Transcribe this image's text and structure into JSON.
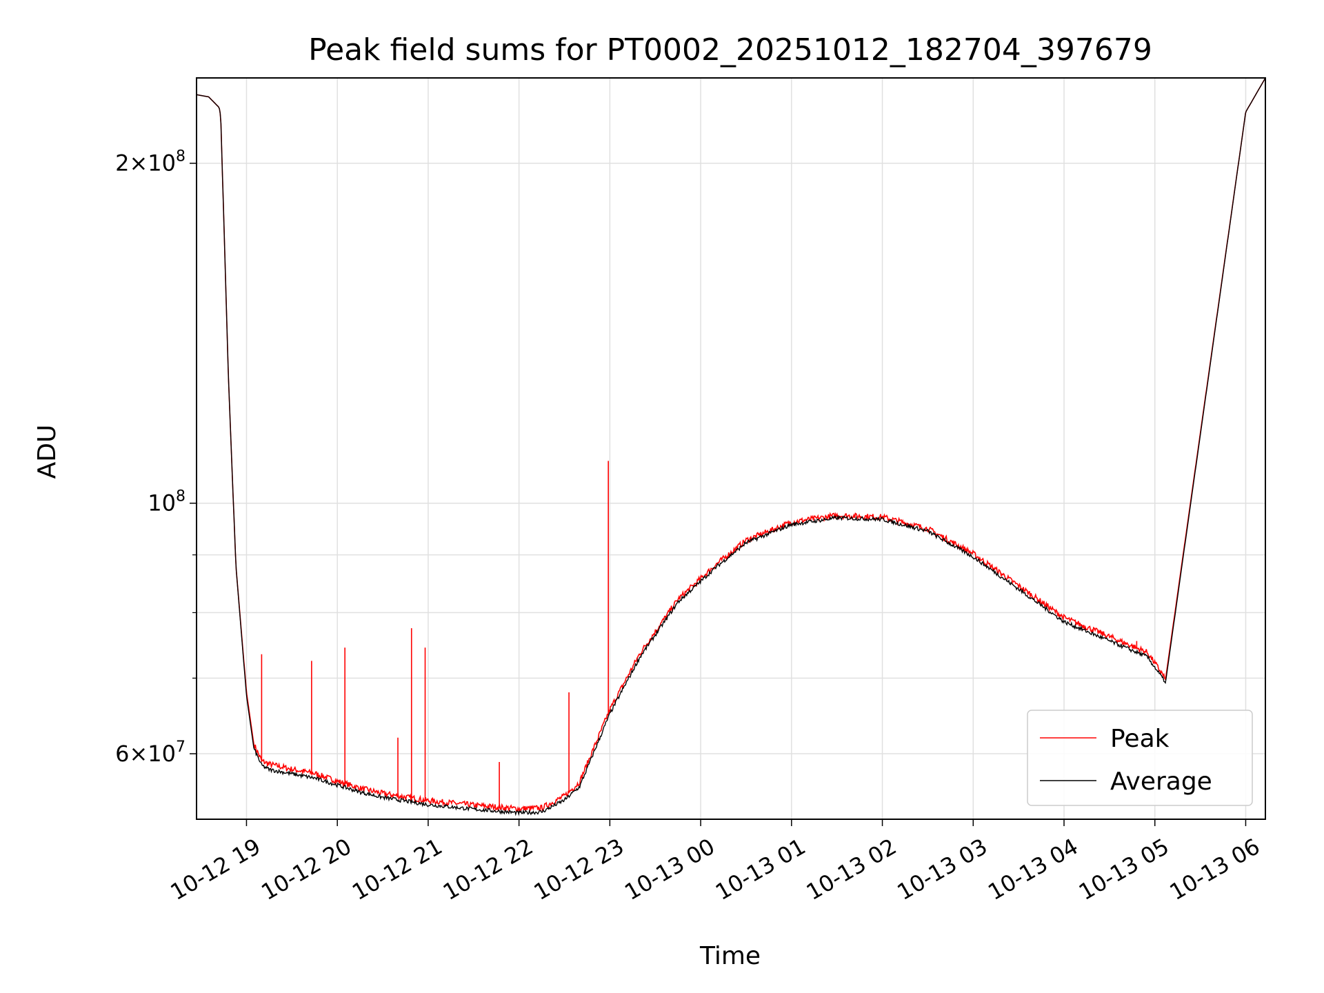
{
  "chart_data": {
    "type": "line",
    "title": "Peak field sums for PT0002_20251012_182704_397679",
    "xlabel": "Time",
    "ylabel": "ADU",
    "yscale": "log",
    "grid": true,
    "legend_placement": "lower-right",
    "xlim": [
      "2025-10-12 18:27",
      "2025-10-13 06:13"
    ],
    "ylim": [
      52500000,
      238000000
    ],
    "x_ticks": [
      "10-12 19",
      "10-12 20",
      "10-12 21",
      "10-12 22",
      "10-12 23",
      "10-13 00",
      "10-13 01",
      "10-13 02",
      "10-13 03",
      "10-13 04",
      "10-13 05",
      "10-13 06"
    ],
    "y_ticks_major": [
      {
        "value": 200000000,
        "mantissa": "2",
        "exponent": "8"
      },
      {
        "value": 100000000,
        "mantissa": "",
        "exponent": "8"
      },
      {
        "value": 60000000,
        "mantissa": "6",
        "exponent": "7"
      }
    ],
    "y_ticks_minor": [
      70000000,
      80000000,
      90000000
    ],
    "x": [
      "2025-10-12 18:27",
      "2025-10-12 18:35",
      "2025-10-12 18:42",
      "2025-10-12 18:43",
      "2025-10-12 18:48",
      "2025-10-12 18:53",
      "2025-10-12 19:00",
      "2025-10-12 19:05",
      "2025-10-12 19:10",
      "2025-10-12 19:15",
      "2025-10-12 19:30",
      "2025-10-12 19:45",
      "2025-10-12 20:00",
      "2025-10-12 20:15",
      "2025-10-12 20:30",
      "2025-10-12 21:00",
      "2025-10-12 21:30",
      "2025-10-12 22:00",
      "2025-10-12 22:15",
      "2025-10-12 22:30",
      "2025-10-12 22:40",
      "2025-10-12 23:00",
      "2025-10-12 23:20",
      "2025-10-12 23:45",
      "2025-10-13 00:10",
      "2025-10-13 00:30",
      "2025-10-13 01:00",
      "2025-10-13 01:30",
      "2025-10-13 02:00",
      "2025-10-13 02:30",
      "2025-10-13 03:00",
      "2025-10-13 03:30",
      "2025-10-13 04:00",
      "2025-10-13 04:30",
      "2025-10-13 04:55",
      "2025-10-13 05:07",
      "2025-10-13 06:00",
      "2025-10-13 06:13"
    ],
    "series": [
      {
        "name": "Peak",
        "color": "#ff0000",
        "values": [
          230000000,
          229000000,
          224000000,
          220000000,
          130000000,
          88000000,
          68000000,
          61000000,
          59000000,
          58600000,
          58000000,
          57500000,
          56600000,
          55800000,
          55200000,
          54400000,
          53900000,
          53500000,
          53600000,
          54900000,
          56500000,
          65500000,
          73500000,
          82000000,
          88000000,
          92500000,
          96000000,
          97300000,
          97000000,
          94700000,
          90000000,
          84300000,
          79000000,
          76000000,
          73600000,
          69800000,
          222000000,
          238000000
        ]
      },
      {
        "name": "Average",
        "color": "#000000",
        "values": [
          230000000,
          229000000,
          224000000,
          220000000,
          130000000,
          88000000,
          67500000,
          60500000,
          58500000,
          58000000,
          57500000,
          57000000,
          56200000,
          55400000,
          54800000,
          54000000,
          53500000,
          53100000,
          53200000,
          54500000,
          56000000,
          65000000,
          73000000,
          81600000,
          87600000,
          92100000,
          95600000,
          96900000,
          96600000,
          94300000,
          89500000,
          83800000,
          78400000,
          75400000,
          73000000,
          69300000,
          222000000,
          238000000
        ]
      }
    ],
    "spikes": [
      {
        "x": "2025-10-12 19:10",
        "value": 73500000
      },
      {
        "x": "2025-10-12 19:43",
        "value": 72500000
      },
      {
        "x": "2025-10-12 20:05",
        "value": 74500000
      },
      {
        "x": "2025-10-12 20:40",
        "value": 62000000
      },
      {
        "x": "2025-10-12 20:49",
        "value": 77500000
      },
      {
        "x": "2025-10-12 20:58",
        "value": 74500000
      },
      {
        "x": "2025-10-12 21:47",
        "value": 59000000
      },
      {
        "x": "2025-10-12 22:33",
        "value": 68000000
      },
      {
        "x": "2025-10-12 22:59",
        "value": 109000000
      },
      {
        "x": "2025-10-13 04:48",
        "value": 75500000
      }
    ],
    "legend": [
      "Peak",
      "Average"
    ]
  }
}
